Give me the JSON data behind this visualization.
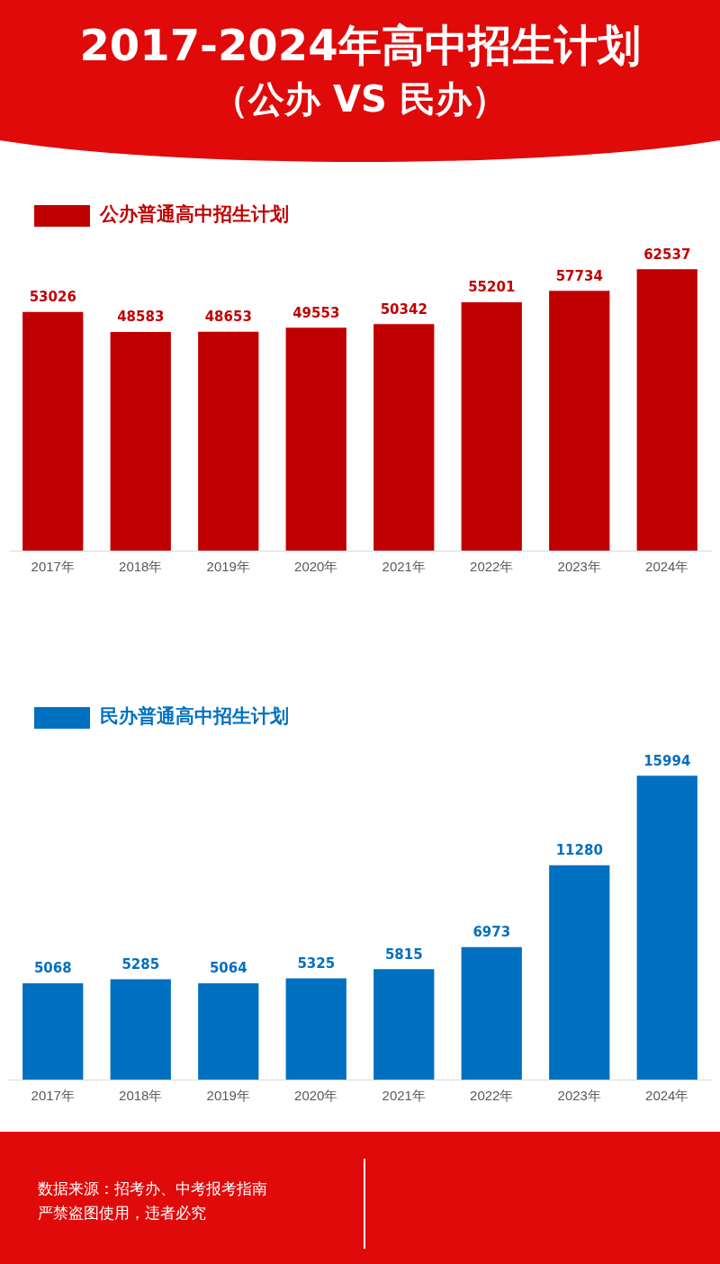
{
  "chart_data": [
    {
      "type": "bar",
      "title": "2017-2024年高中招生计划",
      "subtitle": "（公办 VS 民办）",
      "categories": [
        "2017年",
        "2018年",
        "2019年",
        "2020年",
        "2021年",
        "2022年",
        "2023年",
        "2024年"
      ],
      "series": [
        {
          "name": "公办普通高中招生计划",
          "color": "#c00000",
          "values": [
            53026,
            48583,
            48653,
            49553,
            50342,
            55201,
            57734,
            62537
          ]
        }
      ],
      "data_labels": true,
      "legend": "top left",
      "grid": false
    },
    {
      "type": "bar",
      "categories": [
        "2017年",
        "2018年",
        "2019年",
        "2020年",
        "2021年",
        "2022年",
        "2023年",
        "2024年"
      ],
      "series": [
        {
          "name": "民办普通高中招生计划",
          "color": "#0070c0",
          "values": [
            5068,
            5285,
            5064,
            5325,
            5815,
            6973,
            11280,
            15994
          ]
        }
      ],
      "data_labels": true,
      "legend": "top left",
      "grid": false,
      "annotations": [
        "数据来源：招考办、中考报考指南",
        "严禁盗图使用，违者必究"
      ]
    }
  ]
}
